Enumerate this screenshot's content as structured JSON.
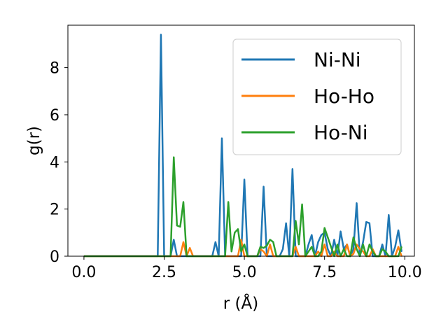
{
  "chart_data": {
    "type": "line",
    "title": "",
    "xlabel": "r (Å)",
    "ylabel": "g(r)",
    "xlim": [
      -0.5,
      10.3
    ],
    "ylim": [
      0,
      9.8
    ],
    "xticks": [
      0.0,
      2.5,
      5.0,
      7.5,
      10.0
    ],
    "xtick_labels": [
      "0.0",
      "2.5",
      "5.0",
      "7.5",
      "10.0"
    ],
    "yticks": [
      0,
      2,
      4,
      6,
      8
    ],
    "ytick_labels": [
      "0",
      "2",
      "4",
      "6",
      "8"
    ],
    "grid": false,
    "legend_position": "top-right",
    "x": [
      0.0,
      0.1,
      0.2,
      0.3,
      0.4,
      0.5,
      0.6,
      0.7,
      0.8,
      0.9,
      1.0,
      1.1,
      1.2,
      1.3,
      1.4,
      1.5,
      1.6,
      1.7,
      1.8,
      1.9,
      2.0,
      2.1,
      2.2,
      2.3,
      2.4,
      2.5,
      2.6,
      2.7,
      2.8,
      2.9,
      3.0,
      3.1,
      3.2,
      3.3,
      3.4,
      3.5,
      3.6,
      3.7,
      3.8,
      3.9,
      4.0,
      4.1,
      4.2,
      4.3,
      4.4,
      4.5,
      4.6,
      4.7,
      4.8,
      4.9,
      5.0,
      5.1,
      5.2,
      5.3,
      5.4,
      5.5,
      5.6,
      5.7,
      5.8,
      5.9,
      6.0,
      6.1,
      6.2,
      6.3,
      6.4,
      6.5,
      6.6,
      6.7,
      6.8,
      6.9,
      7.0,
      7.1,
      7.2,
      7.3,
      7.4,
      7.5,
      7.6,
      7.7,
      7.8,
      7.9,
      8.0,
      8.1,
      8.2,
      8.3,
      8.4,
      8.5,
      8.6,
      8.7,
      8.8,
      8.9,
      9.0,
      9.1,
      9.2,
      9.3,
      9.4,
      9.5,
      9.6,
      9.7,
      9.8,
      9.9
    ],
    "series": [
      {
        "name": "Ni-Ni",
        "color": "#1f77b4",
        "values": [
          0,
          0,
          0,
          0,
          0,
          0,
          0,
          0,
          0,
          0,
          0,
          0,
          0,
          0,
          0,
          0,
          0,
          0,
          0,
          0,
          0,
          0,
          0,
          0,
          9.4,
          0,
          0,
          0,
          0.7,
          0,
          0,
          0,
          0,
          0,
          0,
          0,
          0,
          0,
          0,
          0,
          0,
          0.6,
          0,
          5.0,
          0,
          0,
          0,
          0,
          0,
          0,
          3.25,
          0,
          0,
          0,
          0,
          0,
          2.95,
          0,
          0,
          0,
          0,
          0,
          0.3,
          1.4,
          0,
          3.7,
          0,
          0,
          0,
          0,
          0.5,
          0.9,
          0,
          0.6,
          0.9,
          1.0,
          0.3,
          0,
          0.7,
          0,
          1.05,
          0.3,
          0.5,
          0,
          0.3,
          2.25,
          0,
          0.6,
          1.45,
          1.4,
          0,
          0,
          0,
          0.5,
          0,
          1.75,
          0,
          0.4,
          1.1,
          0.2
        ]
      },
      {
        "name": "Ho-Ho",
        "color": "#ff7f0e",
        "values": [
          0,
          0,
          0,
          0,
          0,
          0,
          0,
          0,
          0,
          0,
          0,
          0,
          0,
          0,
          0,
          0,
          0,
          0,
          0,
          0,
          0,
          0,
          0,
          0,
          0,
          0,
          0,
          0,
          0,
          0,
          0,
          0.6,
          0,
          0.35,
          0,
          0,
          0,
          0,
          0,
          0,
          0,
          0,
          0,
          0,
          0,
          0,
          0,
          0,
          0,
          0.7,
          0,
          0,
          0,
          0,
          0,
          0.3,
          0.2,
          0,
          0.5,
          0,
          0,
          0,
          0,
          0,
          0,
          0,
          0.4,
          0,
          0,
          0,
          0,
          0,
          0,
          0.2,
          0,
          0.5,
          0,
          0,
          0.2,
          0,
          0,
          0,
          0.5,
          0,
          0.1,
          0.5,
          0.3,
          0.2,
          0,
          0,
          0.3,
          0,
          0,
          0,
          0,
          0,
          0,
          0,
          0.4,
          0
        ]
      },
      {
        "name": "Ho-Ni",
        "color": "#2ca02c",
        "values": [
          0,
          0,
          0,
          0,
          0,
          0,
          0,
          0,
          0,
          0,
          0,
          0,
          0,
          0,
          0,
          0,
          0,
          0,
          0,
          0,
          0,
          0,
          0,
          0,
          0,
          0,
          0,
          0,
          4.2,
          1.3,
          1.25,
          2.3,
          0,
          0,
          0,
          0,
          0,
          0,
          0,
          0,
          0,
          0,
          0,
          0,
          0,
          2.3,
          0.2,
          1.0,
          1.15,
          0.2,
          0.5,
          0,
          0,
          0,
          0,
          0.4,
          0.35,
          0.45,
          0.7,
          0.6,
          0,
          0,
          0,
          0,
          0,
          0,
          1.5,
          0.5,
          2.2,
          0,
          0.2,
          0.4,
          0,
          0,
          0.2,
          1.2,
          0.8,
          0.4,
          0,
          0.5,
          0,
          0.3,
          0,
          0,
          0.8,
          0.3,
          0,
          0.5,
          0,
          0.5,
          0.2,
          0,
          0,
          0.3,
          0.2,
          0,
          0,
          0,
          0,
          0.4
        ]
      }
    ]
  }
}
